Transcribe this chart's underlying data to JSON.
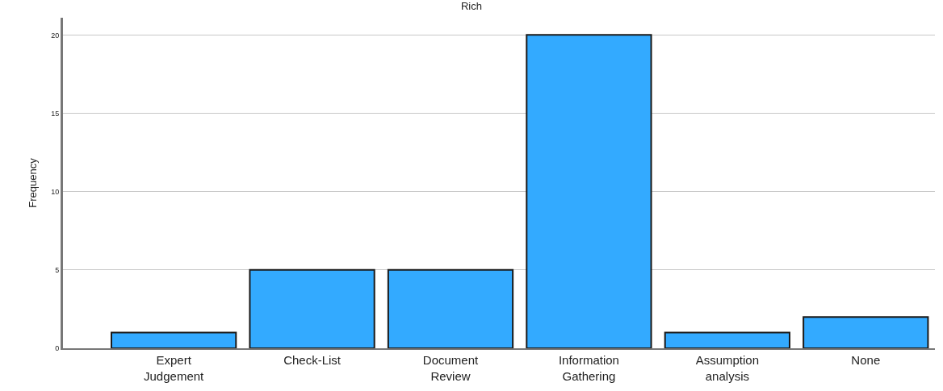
{
  "chart_data": {
    "type": "bar",
    "title": "Rich",
    "ylabel": "Frequency",
    "categories": [
      "Expert\nJudgement",
      "Check-List",
      "Document\nReview",
      "Information\nGathering",
      "Assumption\nanalysis",
      "None"
    ],
    "values": [
      1,
      5,
      5,
      20,
      1,
      2
    ],
    "color": "#33aaff",
    "ylim": [
      0,
      21.1
    ],
    "yticks": [
      0,
      5,
      10,
      15,
      20
    ],
    "grid": "y"
  }
}
